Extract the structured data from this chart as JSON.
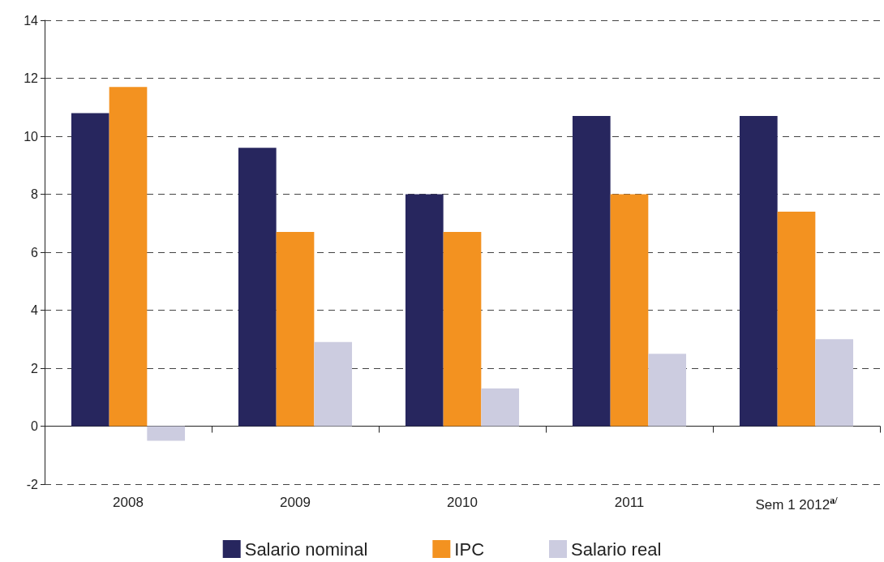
{
  "chart_data": {
    "type": "bar",
    "categories": [
      "2008",
      "2009",
      "2010",
      "2011",
      "Sem 1 2012$^{a/}$"
    ],
    "series": [
      {
        "name": "Salario nominal",
        "color": "#27265e",
        "values": [
          10.8,
          9.6,
          8.0,
          10.7,
          10.7
        ]
      },
      {
        "name": "IPC",
        "color": "#f39220",
        "values": [
          11.7,
          6.7,
          6.7,
          8.0,
          7.4
        ]
      },
      {
        "name": "Salario real",
        "color": "#cccce0",
        "values": [
          -0.5,
          2.9,
          1.3,
          2.5,
          3.0
        ]
      }
    ],
    "ylim": [
      -2,
      14
    ],
    "yticks": [
      -2,
      0,
      2,
      4,
      6,
      8,
      10,
      12,
      14
    ],
    "grid": "y",
    "legend": "bottom"
  }
}
